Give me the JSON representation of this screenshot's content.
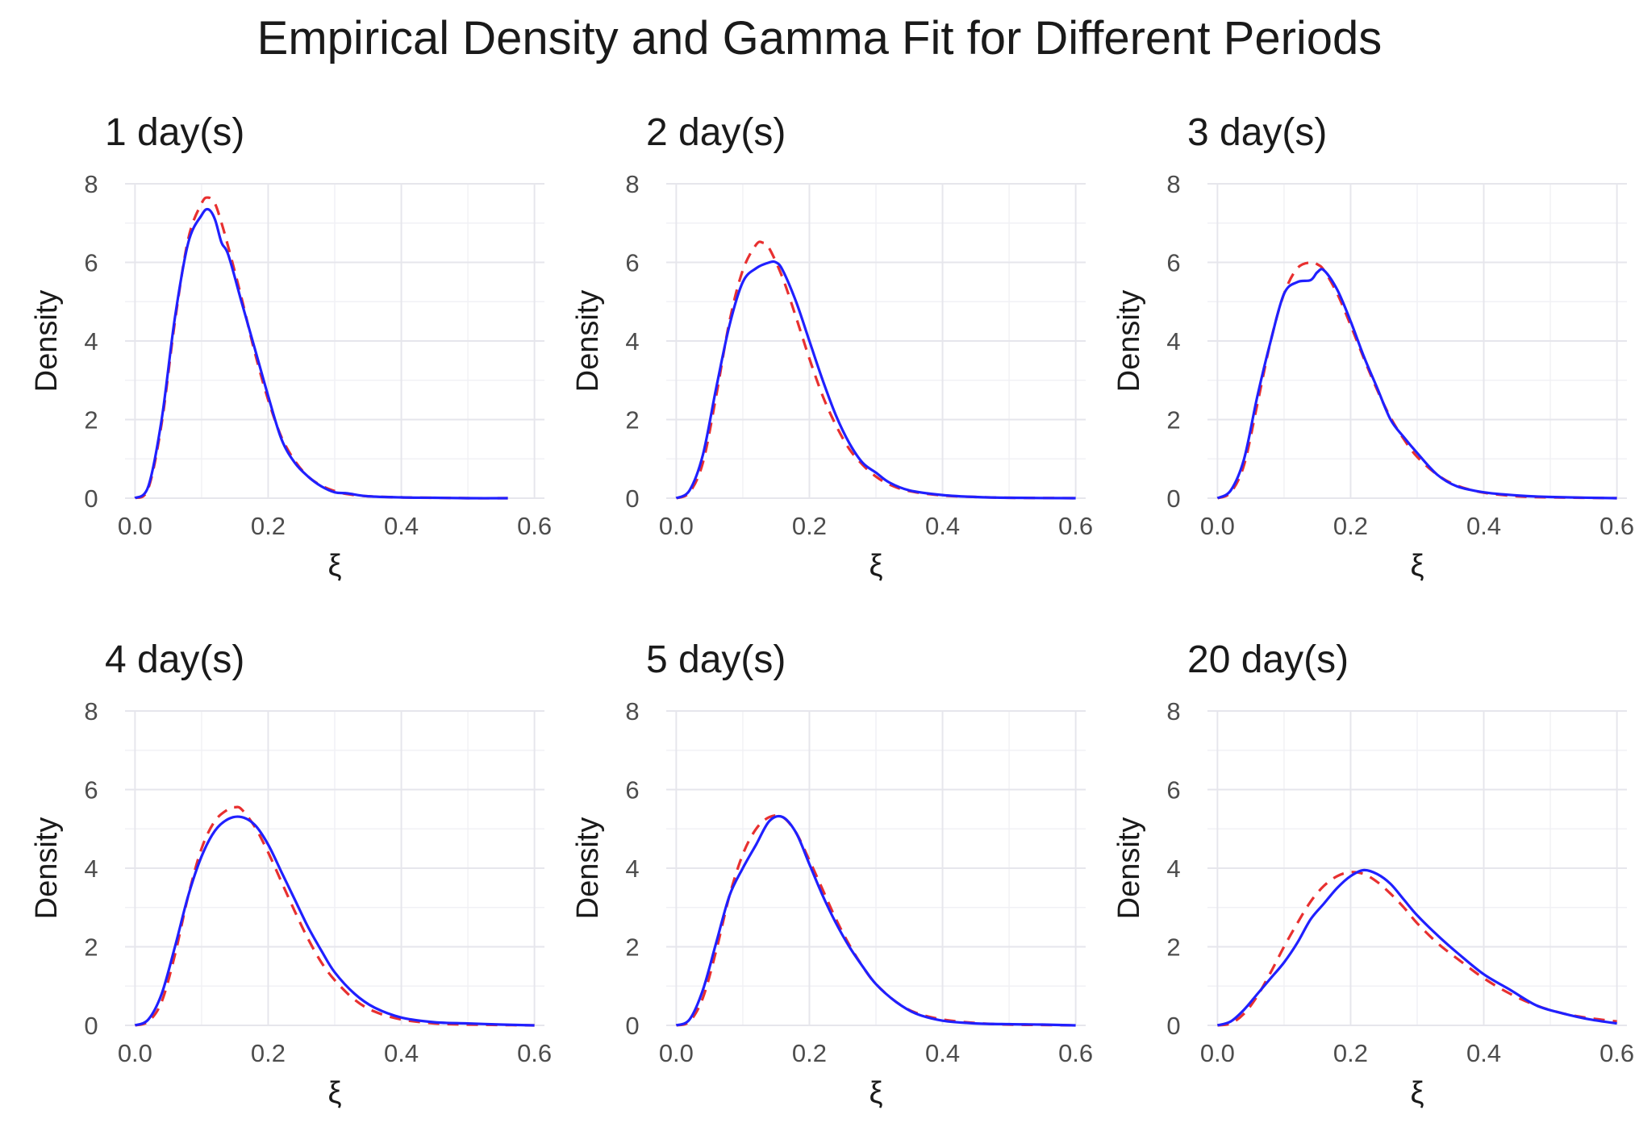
{
  "title": "Empirical Density and Gamma Fit for Different Periods",
  "colors": {
    "empirical": "#2020ff",
    "gamma_fit": "#e83030"
  },
  "chart_data": [
    {
      "type": "line",
      "title": "1 day(s)",
      "xlabel": "ξ",
      "ylabel": "Density",
      "xlim": [
        0,
        0.6
      ],
      "ylim": [
        0,
        8
      ],
      "x_ticks": [
        "0.0",
        "0.2",
        "0.4",
        "0.6"
      ],
      "y_ticks": [
        "0",
        "2",
        "4",
        "6",
        "8"
      ],
      "grid": true,
      "series": [
        {
          "name": "Empirical density",
          "style": "solid",
          "x": [
            0,
            0.02,
            0.04,
            0.06,
            0.08,
            0.1,
            0.11,
            0.12,
            0.13,
            0.14,
            0.16,
            0.18,
            0.2,
            0.22,
            0.24,
            0.26,
            0.28,
            0.3,
            0.32,
            0.35,
            0.4,
            0.45,
            0.5,
            0.56
          ],
          "y": [
            0,
            0.3,
            2.0,
            4.6,
            6.5,
            7.2,
            7.35,
            7.1,
            6.5,
            6.2,
            5.0,
            3.8,
            2.6,
            1.5,
            0.9,
            0.55,
            0.3,
            0.15,
            0.12,
            0.05,
            0.02,
            0.01,
            0,
            0
          ]
        },
        {
          "name": "Gamma fit",
          "style": "dashed",
          "x": [
            0,
            0.02,
            0.04,
            0.06,
            0.08,
            0.1,
            0.11,
            0.12,
            0.13,
            0.14,
            0.16,
            0.18,
            0.2,
            0.22,
            0.24,
            0.26,
            0.28,
            0.3,
            0.32,
            0.35,
            0.4,
            0.45,
            0.5,
            0.56
          ],
          "y": [
            0,
            0.25,
            1.9,
            4.5,
            6.6,
            7.5,
            7.65,
            7.5,
            7.0,
            6.4,
            5.1,
            3.7,
            2.5,
            1.55,
            0.95,
            0.55,
            0.32,
            0.18,
            0.1,
            0.05,
            0.02,
            0.01,
            0,
            0
          ]
        }
      ]
    },
    {
      "type": "line",
      "title": "2 day(s)",
      "xlabel": "ξ",
      "ylabel": "Density",
      "xlim": [
        0,
        0.6
      ],
      "ylim": [
        0,
        8
      ],
      "x_ticks": [
        "0.0",
        "0.2",
        "0.4",
        "0.6"
      ],
      "y_ticks": [
        "0",
        "2",
        "4",
        "6",
        "8"
      ],
      "grid": true,
      "series": [
        {
          "name": "Empirical density",
          "style": "solid",
          "x": [
            0,
            0.02,
            0.04,
            0.06,
            0.08,
            0.1,
            0.12,
            0.14,
            0.15,
            0.16,
            0.18,
            0.2,
            0.22,
            0.24,
            0.26,
            0.28,
            0.3,
            0.32,
            0.35,
            0.4,
            0.45,
            0.5,
            0.6
          ],
          "y": [
            0,
            0.2,
            1.1,
            2.8,
            4.4,
            5.5,
            5.85,
            6.0,
            6.0,
            5.8,
            5.0,
            4.0,
            3.0,
            2.1,
            1.4,
            0.9,
            0.65,
            0.4,
            0.2,
            0.08,
            0.03,
            0.01,
            0
          ]
        },
        {
          "name": "Gamma fit",
          "style": "dashed",
          "x": [
            0,
            0.02,
            0.04,
            0.06,
            0.08,
            0.1,
            0.12,
            0.13,
            0.14,
            0.16,
            0.18,
            0.2,
            0.22,
            0.24,
            0.26,
            0.28,
            0.3,
            0.32,
            0.35,
            0.4,
            0.45,
            0.5,
            0.6
          ],
          "y": [
            0,
            0.15,
            0.9,
            2.6,
            4.5,
            5.8,
            6.45,
            6.5,
            6.35,
            5.6,
            4.6,
            3.55,
            2.6,
            1.85,
            1.25,
            0.85,
            0.55,
            0.35,
            0.18,
            0.07,
            0.03,
            0.01,
            0
          ]
        }
      ]
    },
    {
      "type": "line",
      "title": "3 day(s)",
      "xlabel": "ξ",
      "ylabel": "Density",
      "xlim": [
        0,
        0.6
      ],
      "ylim": [
        0,
        8
      ],
      "x_ticks": [
        "0.0",
        "0.2",
        "0.4",
        "0.6"
      ],
      "y_ticks": [
        "0",
        "2",
        "4",
        "6",
        "8"
      ],
      "grid": true,
      "series": [
        {
          "name": "Empirical density",
          "style": "solid",
          "x": [
            0,
            0.02,
            0.04,
            0.06,
            0.08,
            0.1,
            0.12,
            0.14,
            0.15,
            0.16,
            0.18,
            0.2,
            0.22,
            0.24,
            0.26,
            0.28,
            0.3,
            0.33,
            0.36,
            0.4,
            0.45,
            0.5,
            0.6
          ],
          "y": [
            0,
            0.2,
            1.0,
            2.6,
            4.0,
            5.2,
            5.5,
            5.55,
            5.75,
            5.8,
            5.3,
            4.5,
            3.6,
            2.8,
            2.0,
            1.55,
            1.15,
            0.6,
            0.3,
            0.15,
            0.07,
            0.03,
            0
          ]
        },
        {
          "name": "Gamma fit",
          "style": "dashed",
          "x": [
            0,
            0.02,
            0.04,
            0.06,
            0.08,
            0.1,
            0.12,
            0.14,
            0.15,
            0.16,
            0.18,
            0.2,
            0.22,
            0.24,
            0.26,
            0.28,
            0.3,
            0.33,
            0.36,
            0.4,
            0.45,
            0.5,
            0.6
          ],
          "y": [
            0,
            0.15,
            0.85,
            2.4,
            4.0,
            5.2,
            5.85,
            6.0,
            5.95,
            5.8,
            5.2,
            4.4,
            3.55,
            2.75,
            2.05,
            1.5,
            1.05,
            0.6,
            0.32,
            0.14,
            0.05,
            0.02,
            0
          ]
        }
      ]
    },
    {
      "type": "line",
      "title": "4 day(s)",
      "xlabel": "ξ",
      "ylabel": "Density",
      "xlim": [
        0,
        0.6
      ],
      "ylim": [
        0,
        8
      ],
      "x_ticks": [
        "0.0",
        "0.2",
        "0.4",
        "0.6"
      ],
      "y_ticks": [
        "0",
        "2",
        "4",
        "6",
        "8"
      ],
      "grid": true,
      "series": [
        {
          "name": "Empirical density",
          "style": "solid",
          "x": [
            0,
            0.02,
            0.04,
            0.06,
            0.08,
            0.1,
            0.12,
            0.14,
            0.16,
            0.18,
            0.2,
            0.22,
            0.24,
            0.26,
            0.28,
            0.3,
            0.33,
            0.36,
            0.4,
            0.45,
            0.5,
            0.55,
            0.6
          ],
          "y": [
            0,
            0.15,
            0.8,
            2.0,
            3.3,
            4.3,
            4.95,
            5.25,
            5.3,
            5.1,
            4.6,
            3.9,
            3.2,
            2.5,
            1.9,
            1.35,
            0.8,
            0.45,
            0.2,
            0.08,
            0.05,
            0.02,
            0
          ]
        },
        {
          "name": "Gamma fit",
          "style": "dashed",
          "x": [
            0,
            0.02,
            0.04,
            0.06,
            0.08,
            0.1,
            0.12,
            0.14,
            0.15,
            0.16,
            0.18,
            0.2,
            0.22,
            0.24,
            0.26,
            0.28,
            0.3,
            0.33,
            0.36,
            0.4,
            0.45,
            0.5,
            0.6
          ],
          "y": [
            0,
            0.1,
            0.6,
            1.8,
            3.3,
            4.5,
            5.2,
            5.5,
            5.55,
            5.5,
            5.05,
            4.4,
            3.65,
            2.9,
            2.2,
            1.6,
            1.15,
            0.65,
            0.35,
            0.15,
            0.05,
            0.02,
            0
          ]
        }
      ]
    },
    {
      "type": "line",
      "title": "5 day(s)",
      "xlabel": "ξ",
      "ylabel": "Density",
      "xlim": [
        0,
        0.6
      ],
      "ylim": [
        0,
        8
      ],
      "x_ticks": [
        "0.0",
        "0.2",
        "0.4",
        "0.6"
      ],
      "y_ticks": [
        "0",
        "2",
        "4",
        "6",
        "8"
      ],
      "grid": true,
      "series": [
        {
          "name": "Empirical density",
          "style": "solid",
          "x": [
            0,
            0.02,
            0.04,
            0.06,
            0.08,
            0.1,
            0.12,
            0.14,
            0.16,
            0.18,
            0.2,
            0.22,
            0.24,
            0.26,
            0.28,
            0.3,
            0.33,
            0.36,
            0.4,
            0.45,
            0.5,
            0.55,
            0.6
          ],
          "y": [
            0,
            0.15,
            0.9,
            2.1,
            3.3,
            4.0,
            4.6,
            5.2,
            5.3,
            4.9,
            4.1,
            3.3,
            2.6,
            2.0,
            1.5,
            1.05,
            0.6,
            0.3,
            0.12,
            0.05,
            0.03,
            0.02,
            0
          ]
        },
        {
          "name": "Gamma fit",
          "style": "dashed",
          "x": [
            0,
            0.02,
            0.04,
            0.06,
            0.08,
            0.1,
            0.12,
            0.14,
            0.16,
            0.18,
            0.2,
            0.22,
            0.24,
            0.26,
            0.28,
            0.3,
            0.33,
            0.36,
            0.4,
            0.45,
            0.5,
            0.55,
            0.6
          ],
          "y": [
            0,
            0.1,
            0.7,
            1.9,
            3.3,
            4.35,
            5.0,
            5.3,
            5.3,
            4.9,
            4.2,
            3.45,
            2.7,
            2.05,
            1.5,
            1.05,
            0.6,
            0.32,
            0.15,
            0.06,
            0.02,
            0.01,
            0
          ]
        }
      ]
    },
    {
      "type": "line",
      "title": "20 day(s)",
      "xlabel": "ξ",
      "ylabel": "Density",
      "xlim": [
        0,
        0.6
      ],
      "ylim": [
        0,
        8
      ],
      "x_ticks": [
        "0.0",
        "0.2",
        "0.4",
        "0.6"
      ],
      "y_ticks": [
        "0",
        "2",
        "4",
        "6",
        "8"
      ],
      "grid": true,
      "series": [
        {
          "name": "Empirical density",
          "style": "solid",
          "x": [
            0,
            0.02,
            0.04,
            0.06,
            0.08,
            0.1,
            0.12,
            0.14,
            0.16,
            0.18,
            0.2,
            0.22,
            0.24,
            0.26,
            0.28,
            0.3,
            0.33,
            0.36,
            0.4,
            0.44,
            0.48,
            0.52,
            0.56,
            0.6
          ],
          "y": [
            0,
            0.1,
            0.4,
            0.8,
            1.2,
            1.6,
            2.1,
            2.7,
            3.1,
            3.5,
            3.8,
            3.95,
            3.85,
            3.6,
            3.2,
            2.8,
            2.3,
            1.85,
            1.3,
            0.9,
            0.5,
            0.3,
            0.15,
            0.05
          ]
        },
        {
          "name": "Gamma fit",
          "style": "dashed",
          "x": [
            0,
            0.02,
            0.04,
            0.06,
            0.08,
            0.1,
            0.12,
            0.14,
            0.16,
            0.18,
            0.2,
            0.22,
            0.24,
            0.26,
            0.28,
            0.3,
            0.33,
            0.36,
            0.4,
            0.44,
            0.48,
            0.52,
            0.56,
            0.6
          ],
          "y": [
            0,
            0.05,
            0.3,
            0.75,
            1.35,
            2.0,
            2.6,
            3.15,
            3.55,
            3.8,
            3.9,
            3.85,
            3.65,
            3.35,
            3.0,
            2.6,
            2.1,
            1.7,
            1.2,
            0.8,
            0.5,
            0.3,
            0.18,
            0.1
          ]
        }
      ]
    }
  ]
}
